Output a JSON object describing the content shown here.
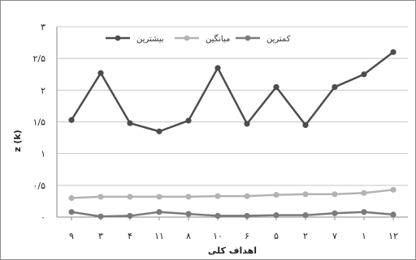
{
  "chart_data": {
    "type": "line",
    "xlabel": "اهداف کلی",
    "ylabel": "z (k)",
    "ylim": [
      0,
      3
    ],
    "yticks": [
      0,
      0.5,
      1,
      1.5,
      2,
      2.5,
      3
    ],
    "ytick_labels": [
      "۰",
      "۰/۵",
      "۱",
      "۱/۵",
      "۲",
      "۲/۵",
      "۳"
    ],
    "categories": [
      "۹",
      "۳",
      "۴",
      "۱۱",
      "۸",
      "۱۰",
      "۶",
      "۵",
      "۲",
      "۷",
      "۱",
      "۱۲"
    ],
    "grid": "horizontal",
    "legend_position": "top-center",
    "series": [
      {
        "name": "بیشترین",
        "color": "#4d4d4d",
        "values": [
          1.53,
          2.27,
          1.48,
          1.35,
          1.52,
          2.35,
          1.47,
          2.05,
          1.45,
          2.05,
          2.25,
          2.6
        ]
      },
      {
        "name": "میانگین",
        "color": "#b3b3b3",
        "values": [
          0.3,
          0.32,
          0.32,
          0.32,
          0.32,
          0.33,
          0.33,
          0.35,
          0.36,
          0.36,
          0.38,
          0.43
        ]
      },
      {
        "name": "کمترین",
        "color": "#7a7a7a",
        "values": [
          0.08,
          0.01,
          0.02,
          0.08,
          0.05,
          0.02,
          0.02,
          0.03,
          0.03,
          0.06,
          0.08,
          0.04
        ]
      }
    ]
  }
}
